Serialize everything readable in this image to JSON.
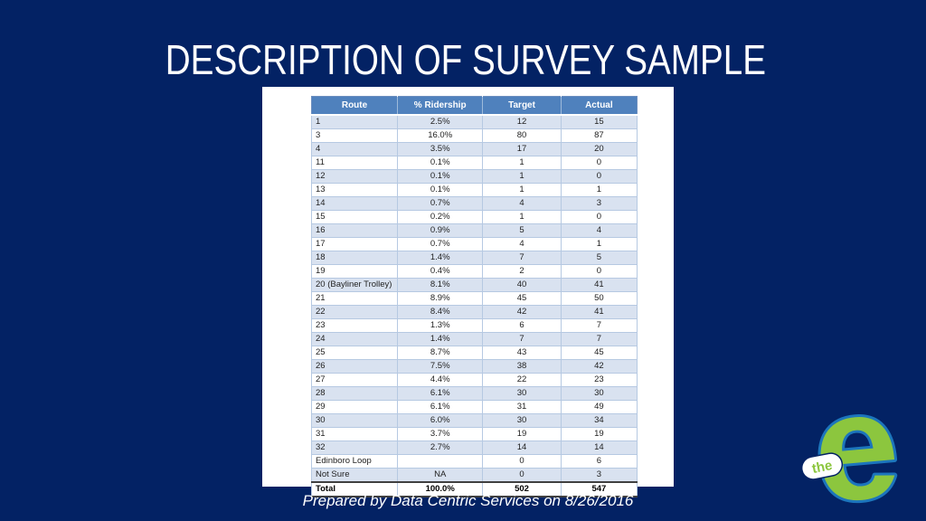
{
  "slide": {
    "title": "DESCRIPTION OF SURVEY SAMPLE",
    "footer": "Prepared by Data Centric Services on 8/26/2016",
    "background_color": "#032264",
    "title_color": "#ffffff"
  },
  "table": {
    "columns": [
      "Route",
      "% Ridership",
      "Target",
      "Actual"
    ],
    "rows": [
      [
        "1",
        "2.5%",
        "12",
        "15"
      ],
      [
        "3",
        "16.0%",
        "80",
        "87"
      ],
      [
        "4",
        "3.5%",
        "17",
        "20"
      ],
      [
        "11",
        "0.1%",
        "1",
        "0"
      ],
      [
        "12",
        "0.1%",
        "1",
        "0"
      ],
      [
        "13",
        "0.1%",
        "1",
        "1"
      ],
      [
        "14",
        "0.7%",
        "4",
        "3"
      ],
      [
        "15",
        "0.2%",
        "1",
        "0"
      ],
      [
        "16",
        "0.9%",
        "5",
        "4"
      ],
      [
        "17",
        "0.7%",
        "4",
        "1"
      ],
      [
        "18",
        "1.4%",
        "7",
        "5"
      ],
      [
        "19",
        "0.4%",
        "2",
        "0"
      ],
      [
        "20 (Bayliner Trolley)",
        "8.1%",
        "40",
        "41"
      ],
      [
        "21",
        "8.9%",
        "45",
        "50"
      ],
      [
        "22",
        "8.4%",
        "42",
        "41"
      ],
      [
        "23",
        "1.3%",
        "6",
        "7"
      ],
      [
        "24",
        "1.4%",
        "7",
        "7"
      ],
      [
        "25",
        "8.7%",
        "43",
        "45"
      ],
      [
        "26",
        "7.5%",
        "38",
        "42"
      ],
      [
        "27",
        "4.4%",
        "22",
        "23"
      ],
      [
        "28",
        "6.1%",
        "30",
        "30"
      ],
      [
        "29",
        "6.1%",
        "31",
        "49"
      ],
      [
        "30",
        "6.0%",
        "30",
        "34"
      ],
      [
        "31",
        "3.7%",
        "19",
        "19"
      ],
      [
        "32",
        "2.7%",
        "14",
        "14"
      ],
      [
        "Edinboro Loop",
        "",
        "0",
        "6"
      ],
      [
        "Not Sure",
        "NA",
        "0",
        "3"
      ]
    ],
    "total_row": [
      "Total",
      "100.0%",
      "502",
      "547"
    ],
    "header_bg": "#4f81bd",
    "banded_row_bg": "#d9e2f0"
  },
  "logo": {
    "small_text": "the",
    "big_letter": "e",
    "green": "#8cc63e",
    "blue": "#1c75bc"
  },
  "chart_data": {
    "type": "table",
    "title": "DESCRIPTION OF SURVEY SAMPLE",
    "columns": [
      "Route",
      "% Ridership",
      "Target",
      "Actual"
    ],
    "rows": [
      [
        "1",
        "2.5%",
        12,
        15
      ],
      [
        "3",
        "16.0%",
        80,
        87
      ],
      [
        "4",
        "3.5%",
        17,
        20
      ],
      [
        "11",
        "0.1%",
        1,
        0
      ],
      [
        "12",
        "0.1%",
        1,
        0
      ],
      [
        "13",
        "0.1%",
        1,
        1
      ],
      [
        "14",
        "0.7%",
        4,
        3
      ],
      [
        "15",
        "0.2%",
        1,
        0
      ],
      [
        "16",
        "0.9%",
        5,
        4
      ],
      [
        "17",
        "0.7%",
        4,
        1
      ],
      [
        "18",
        "1.4%",
        7,
        5
      ],
      [
        "19",
        "0.4%",
        2,
        0
      ],
      [
        "20 (Bayliner Trolley)",
        "8.1%",
        40,
        41
      ],
      [
        "21",
        "8.9%",
        45,
        50
      ],
      [
        "22",
        "8.4%",
        42,
        41
      ],
      [
        "23",
        "1.3%",
        6,
        7
      ],
      [
        "24",
        "1.4%",
        7,
        7
      ],
      [
        "25",
        "8.7%",
        43,
        45
      ],
      [
        "26",
        "7.5%",
        38,
        42
      ],
      [
        "27",
        "4.4%",
        22,
        23
      ],
      [
        "28",
        "6.1%",
        30,
        30
      ],
      [
        "29",
        "6.1%",
        31,
        49
      ],
      [
        "30",
        "6.0%",
        30,
        34
      ],
      [
        "31",
        "3.7%",
        19,
        19
      ],
      [
        "32",
        "2.7%",
        14,
        14
      ],
      [
        "Edinboro Loop",
        "",
        0,
        6
      ],
      [
        "Not Sure",
        "NA",
        0,
        3
      ],
      [
        "Total",
        "100.0%",
        502,
        547
      ]
    ]
  }
}
